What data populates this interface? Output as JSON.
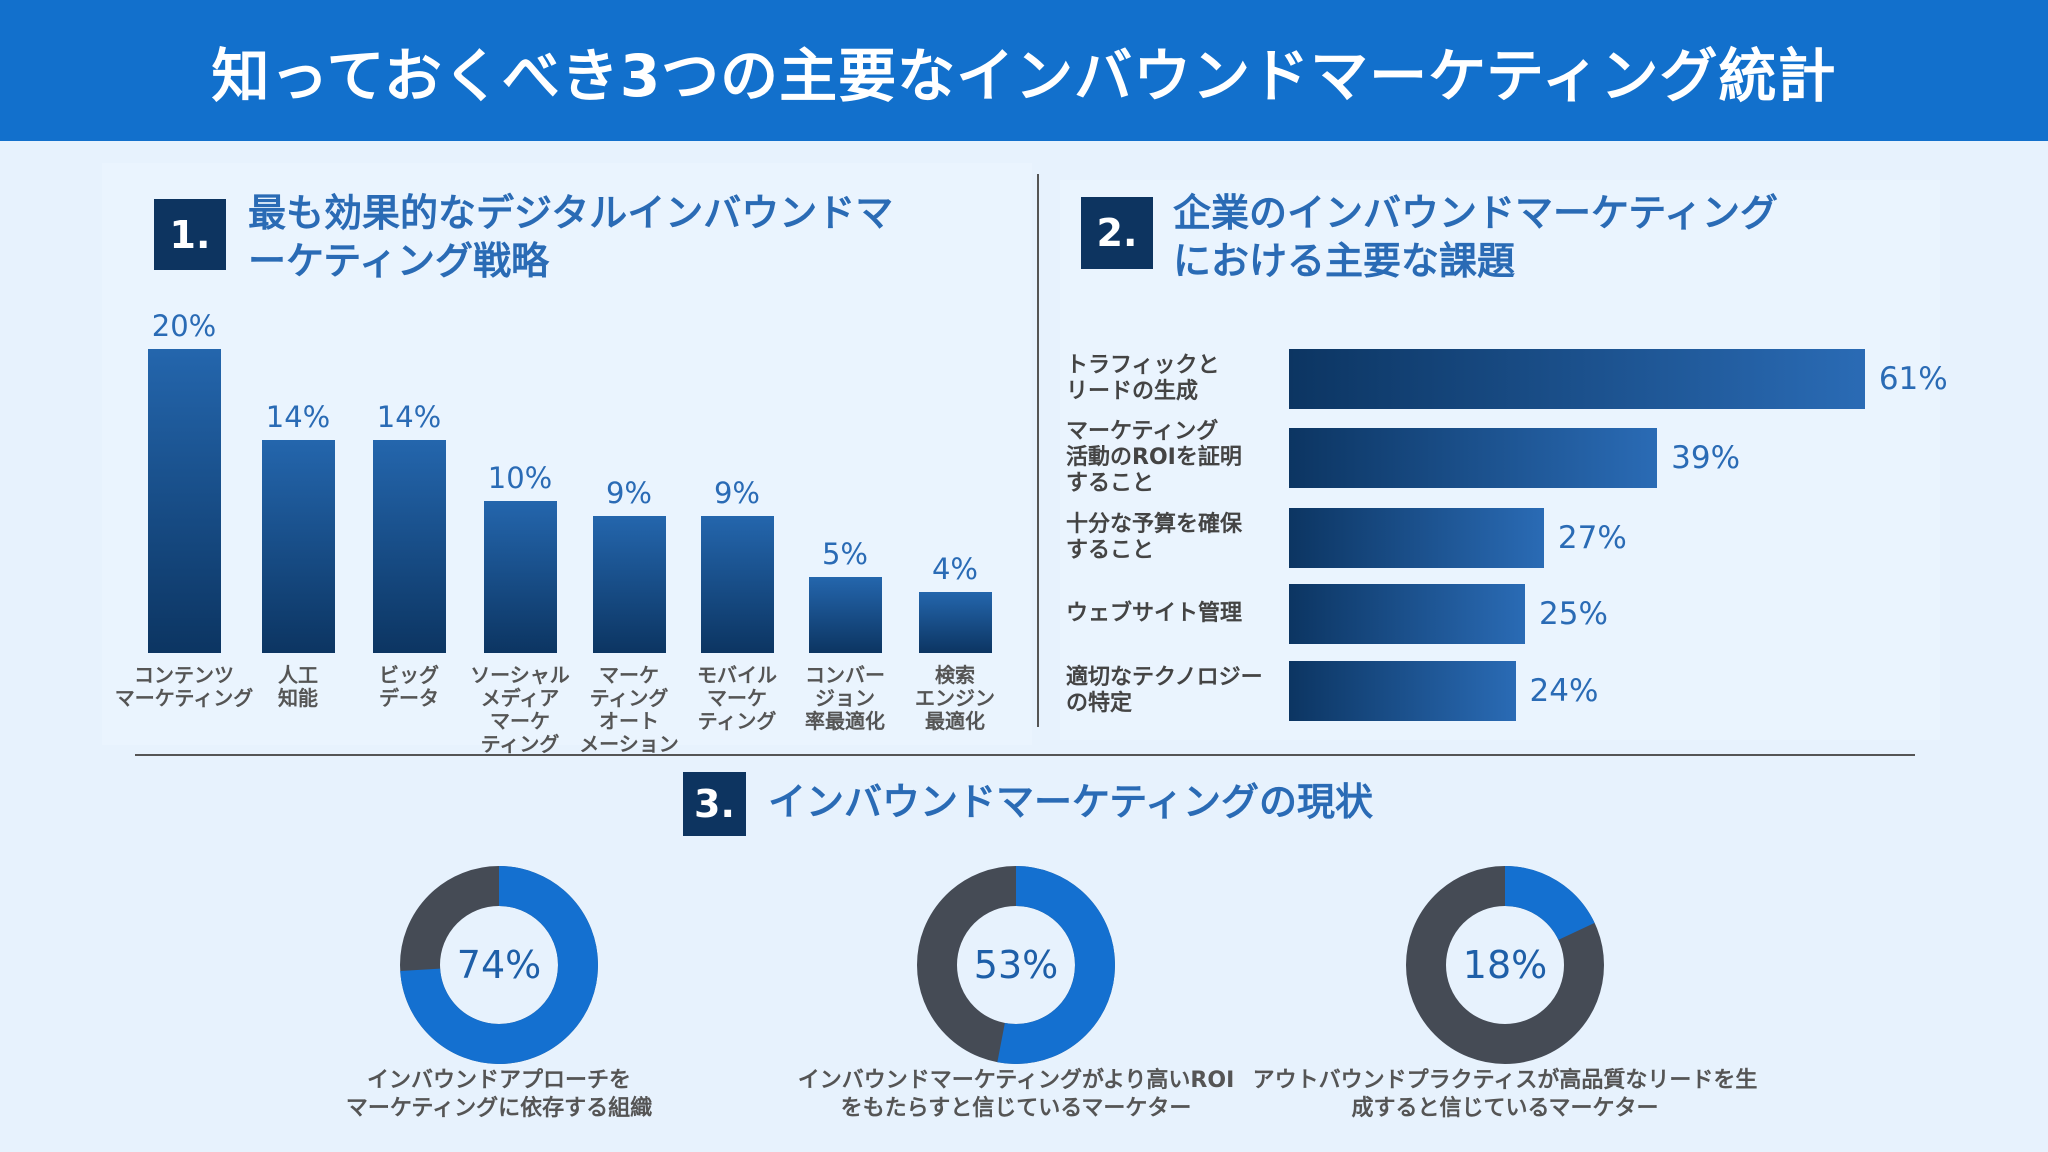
{
  "title": "知っておくべき3つの主要なインバウンドマーケティング統計",
  "colors": {
    "header": "#1270cc",
    "navy": "#0d3460",
    "accent_text": "#2a6bb5",
    "donut_fill": "#1470d0",
    "donut_track": "#454b55"
  },
  "chart_data": [
    {
      "type": "bar",
      "number": "1.",
      "title": "最も効果的なデジタルインバウンドマ\nーケティング戦略",
      "categories": [
        "コンテンツ\nマーケティング",
        "人工\n知能",
        "ビッグ\nデータ",
        "ソーシャル\nメディア\nマーケ\nティング",
        "マーケ\nティング\nオート\nメーション",
        "モバイル\nマーケ\nティング",
        "コンバー\nジョン\n率最適化",
        "検索\nエンジン\n最適化"
      ],
      "values": [
        20,
        14,
        14,
        10,
        9,
        9,
        5,
        4
      ],
      "value_labels": [
        "20%",
        "14%",
        "14%",
        "10%",
        "9%",
        "9%",
        "5%",
        "4%"
      ],
      "unit": "%"
    },
    {
      "type": "bar",
      "orientation": "horizontal",
      "number": "2.",
      "title": "企業のインバウンドマーケティング\nにおける主要な課題",
      "categories": [
        "トラフィックと\nリードの生成",
        "マーケティング\n活動のROIを証明\nすること",
        "十分な予算を確保\nすること",
        "ウェブサイト管理",
        "適切なテクノロジー\nの特定"
      ],
      "values": [
        61,
        39,
        27,
        25,
        24
      ],
      "value_labels": [
        "61%",
        "39%",
        "27%",
        "25%",
        "24%"
      ],
      "unit": "%"
    },
    {
      "type": "pie",
      "style": "donut",
      "number": "3.",
      "title": "インバウンドマーケティングの現状",
      "values": [
        74,
        53,
        18
      ],
      "value_labels": [
        "74%",
        "53%",
        "18%"
      ],
      "captions": [
        "インバウンドアプローチを\nマーケティングに依存する組織",
        "インバウンドマーケティングがより高いROI\nをもたらすと信じているマーケター",
        "アウトバウンドプラクティスが高品質なリードを生\n成すると信じているマーケター"
      ]
    }
  ]
}
